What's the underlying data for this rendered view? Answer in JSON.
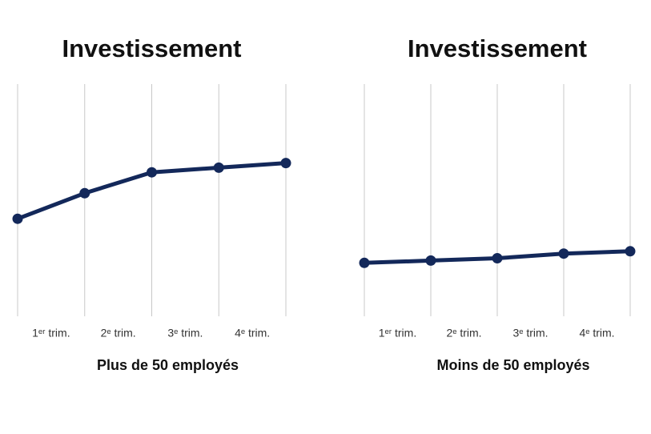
{
  "chart_data": [
    {
      "type": "line",
      "title": "Investissement",
      "xlabel": "Plus de 50 employés",
      "x": [
        0,
        1,
        2,
        3,
        4
      ],
      "xlim": [
        0,
        4
      ],
      "xticks": [
        0,
        1,
        2,
        3,
        4
      ],
      "categories": [
        "1ᵉʳ trim.",
        "2ᵉ trim.",
        "3ᵉ trim.",
        "4ᵉ trim."
      ],
      "ylim": [
        0,
        100
      ],
      "series": [
        {
          "color": "#13285a",
          "values": [
            42,
            53,
            62,
            64,
            66
          ]
        }
      ]
    },
    {
      "type": "line",
      "title": "Investissement",
      "xlabel": "Moins de 50 employés",
      "x": [
        0,
        1,
        2,
        3,
        4
      ],
      "xlim": [
        0,
        4
      ],
      "xticks": [
        0,
        1,
        2,
        3,
        4
      ],
      "categories": [
        "1ᵉʳ trim.",
        "2ᵉ trim.",
        "3ᵉ trim.",
        "4ᵉ trim."
      ],
      "ylim": [
        0,
        100
      ],
      "series": [
        {
          "color": "#13285a",
          "values": [
            23,
            24,
            25,
            27,
            28
          ]
        }
      ]
    }
  ]
}
